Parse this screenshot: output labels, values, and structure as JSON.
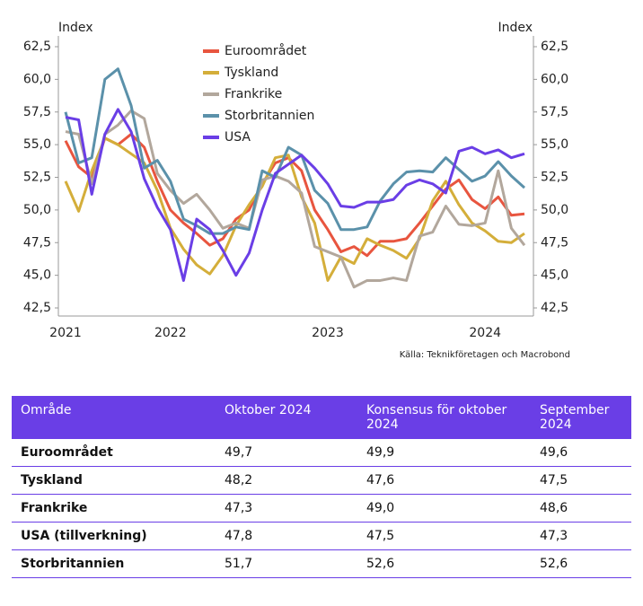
{
  "chart_data": {
    "type": "line",
    "y_label": "Index",
    "y2_label": "Index",
    "source": "Källa: Teknikföretagen och Macrobond",
    "categories": [
      "2021",
      null,
      null,
      null,
      null,
      null,
      null,
      null,
      "2022",
      null,
      null,
      null,
      null,
      null,
      null,
      null,
      null,
      null,
      null,
      null,
      "2023",
      null,
      null,
      null,
      null,
      null,
      null,
      null,
      null,
      null,
      null,
      null,
      "2024",
      null,
      null,
      null
    ],
    "series": [
      {
        "name": "Euroområdet",
        "color": "#e8553f",
        "values": [
          55.3,
          53.3,
          52.5,
          55.5,
          55.0,
          55.8,
          54.8,
          52.2,
          50.0,
          49.0,
          48.2,
          47.3,
          47.8,
          49.3,
          50.0,
          52.0,
          53.6,
          54.0,
          53.0,
          50.0,
          48.5,
          46.8,
          47.2,
          46.5,
          47.6,
          47.6,
          47.8,
          49.0,
          50.3,
          51.6,
          52.3,
          50.8,
          50.1,
          51.0,
          49.6,
          49.7
        ]
      },
      {
        "name": "Tyskland",
        "color": "#d4ae3a",
        "values": [
          52.2,
          49.9,
          53.0,
          55.5,
          55.0,
          54.3,
          53.6,
          51.5,
          48.6,
          47.0,
          45.8,
          45.1,
          46.5,
          48.8,
          50.4,
          51.8,
          54.0,
          54.2,
          51.0,
          49.0,
          44.6,
          46.4,
          45.9,
          47.8,
          47.3,
          46.9,
          46.3,
          47.8,
          50.7,
          52.2,
          50.4,
          49.0,
          48.4,
          47.6,
          47.5,
          48.2
        ]
      },
      {
        "name": "Frankrike",
        "color": "#b2a79c",
        "values": [
          56.0,
          55.8,
          52.0,
          55.8,
          56.5,
          57.6,
          57.0,
          52.8,
          51.5,
          50.5,
          51.2,
          50.0,
          48.6,
          49.0,
          48.6,
          52.3,
          52.6,
          52.2,
          51.3,
          47.2,
          46.8,
          46.4,
          44.1,
          44.6,
          44.6,
          44.8,
          44.6,
          48.0,
          48.3,
          50.3,
          48.9,
          48.8,
          49.0,
          53.0,
          48.6,
          47.3
        ]
      },
      {
        "name": "Storbritannien",
        "color": "#5b91aa",
        "values": [
          57.5,
          53.6,
          54.0,
          60.0,
          60.8,
          58.0,
          53.2,
          53.8,
          52.2,
          49.3,
          48.8,
          48.2,
          48.2,
          48.7,
          48.5,
          53.0,
          52.5,
          54.8,
          54.2,
          51.5,
          50.5,
          48.5,
          48.5,
          48.7,
          50.7,
          52.0,
          52.9,
          53.0,
          52.9,
          54.0,
          53.1,
          52.2,
          52.6,
          53.7,
          52.6,
          51.7
        ]
      },
      {
        "name": "USA",
        "color": "#6a3ee6",
        "values": [
          57.1,
          56.9,
          51.2,
          55.8,
          57.7,
          56.0,
          52.4,
          50.2,
          48.5,
          44.6,
          49.3,
          48.5,
          46.9,
          45.0,
          46.7,
          50.0,
          52.8,
          53.5,
          54.2,
          53.2,
          52.0,
          50.3,
          50.2,
          50.6,
          50.6,
          50.8,
          51.9,
          52.3,
          52.0,
          51.3,
          54.5,
          54.8,
          54.3,
          54.6,
          54.0,
          54.3
        ]
      }
    ],
    "ylim": [
      42.5,
      62.5
    ],
    "yticks": [
      {
        "value": 42.5,
        "label": "42,5"
      },
      {
        "value": 45,
        "label": "45,0"
      },
      {
        "value": 47.5,
        "label": "47,5"
      },
      {
        "value": 50,
        "label": "50,0"
      },
      {
        "value": 52.5,
        "label": "52,5"
      },
      {
        "value": 55,
        "label": "55,0"
      },
      {
        "value": 57.5,
        "label": "57,5"
      },
      {
        "value": 60,
        "label": "60,0"
      },
      {
        "value": 62.5,
        "label": "62,5"
      }
    ],
    "y2lim": [
      42.5,
      62.5
    ],
    "y2ticks": [
      {
        "value": 42.5,
        "label": "42,5"
      },
      {
        "value": 45,
        "label": "45,0"
      },
      {
        "value": 47.5,
        "label": "47,5"
      },
      {
        "value": 50,
        "label": "50,0"
      },
      {
        "value": 52.5,
        "label": "52,5"
      },
      {
        "value": 55,
        "label": "55,0"
      },
      {
        "value": 57.5,
        "label": "57,5"
      },
      {
        "value": 60,
        "label": "60,0"
      },
      {
        "value": 62.5,
        "label": "62,5"
      }
    ]
  },
  "table": {
    "columns": [
      "Område",
      "Oktober 2024",
      "Konsensus för oktober 2024",
      "September 2024"
    ],
    "rows": [
      [
        "Euroområdet",
        "49,7",
        "49,9",
        "49,6"
      ],
      [
        "Tyskland",
        "48,2",
        "47,6",
        "47,5"
      ],
      [
        "Frankrike",
        "47,3",
        "49,0",
        "48,6"
      ],
      [
        "USA (tillverkning)",
        "47,8",
        "47,5",
        "47,3"
      ],
      [
        "Storbritannien",
        "51,7",
        "52,6",
        "52,6"
      ]
    ]
  }
}
